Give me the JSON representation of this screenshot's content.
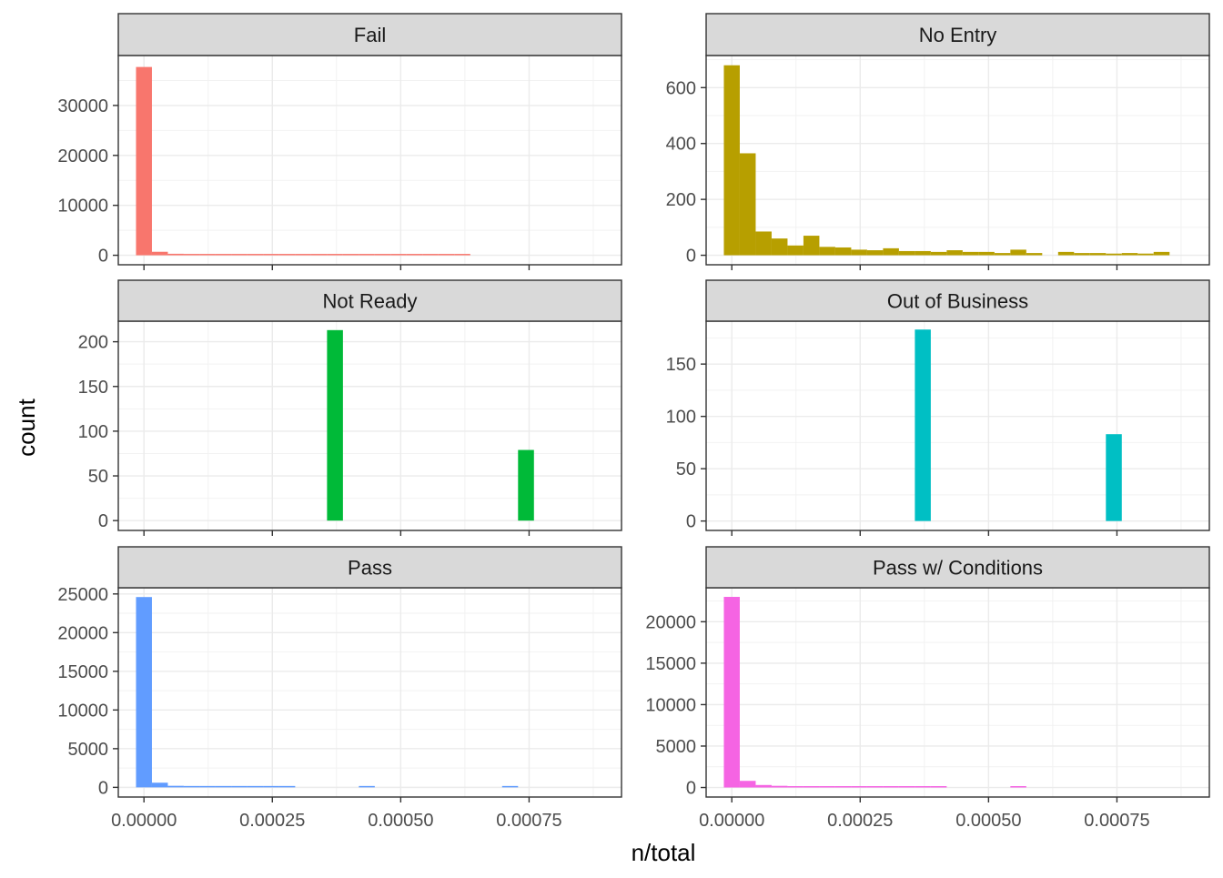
{
  "chart_data": {
    "type": "bar",
    "subtype": "faceted-histogram",
    "xlabel": "n/total",
    "ylabel": "count",
    "grid": true,
    "x_ticks": [
      "0.00000",
      "0.00025",
      "0.00050",
      "0.00075"
    ],
    "x_tick_values": [
      0,
      0.00025,
      0.0005,
      0.00075
    ],
    "xlim": [
      -5e-05,
      0.00093
    ],
    "bin_width": 3.1e-05,
    "bin_start": -1.55e-05,
    "facets": [
      {
        "name": "Fail",
        "color": "#F8766D",
        "ylim": [
          -1900,
          40000
        ],
        "y_ticks": [
          0,
          10000,
          20000,
          30000
        ],
        "y_tick_labels": [
          "0",
          "10000",
          "20000",
          "30000"
        ],
        "values": [
          37700,
          700,
          300,
          150,
          120,
          100,
          90,
          80,
          70,
          60,
          50,
          40,
          40,
          40,
          30,
          30,
          30,
          30,
          30,
          30,
          30,
          0,
          0,
          0,
          0,
          0,
          0,
          0,
          0,
          0
        ]
      },
      {
        "name": "No Entry",
        "color": "#B79F00",
        "ylim": [
          -34,
          715
        ],
        "y_ticks": [
          0,
          200,
          400,
          600
        ],
        "y_tick_labels": [
          "0",
          "200",
          "400",
          "600"
        ],
        "values": [
          680,
          365,
          85,
          60,
          35,
          70,
          30,
          28,
          20,
          18,
          25,
          15,
          15,
          12,
          18,
          12,
          12,
          8,
          20,
          8,
          0,
          12,
          8,
          8,
          6,
          8,
          6,
          12
        ]
      },
      {
        "name": "Not Ready",
        "color": "#00BA38",
        "ylim": [
          -11,
          223
        ],
        "y_ticks": [
          0,
          50,
          100,
          150,
          200
        ],
        "y_tick_labels": [
          "0",
          "50",
          "100",
          "150",
          "200"
        ],
        "values": [
          0,
          0,
          0,
          0,
          0,
          0,
          0,
          0,
          0,
          0,
          0,
          0,
          213,
          0,
          0,
          0,
          0,
          0,
          0,
          0,
          0,
          0,
          0,
          0,
          79,
          0,
          0,
          0,
          0,
          0
        ]
      },
      {
        "name": "Out of Business",
        "color": "#00BFC4",
        "ylim": [
          -9,
          191
        ],
        "y_ticks": [
          0,
          50,
          100,
          150
        ],
        "y_tick_labels": [
          "0",
          "50",
          "100",
          "150"
        ],
        "values": [
          0,
          0,
          0,
          0,
          0,
          0,
          0,
          0,
          0,
          0,
          0,
          0,
          183,
          0,
          0,
          0,
          0,
          0,
          0,
          0,
          0,
          0,
          0,
          0,
          83,
          0,
          0,
          0,
          0,
          0
        ]
      },
      {
        "name": "Pass",
        "color": "#619CFF",
        "ylim": [
          -1250,
          25800
        ],
        "y_ticks": [
          0,
          5000,
          10000,
          15000,
          20000,
          25000
        ],
        "y_tick_labels": [
          "0",
          "5000",
          "10000",
          "15000",
          "20000",
          "25000"
        ],
        "values": [
          24600,
          600,
          200,
          150,
          100,
          80,
          70,
          60,
          50,
          40,
          0,
          0,
          0,
          0,
          80,
          0,
          0,
          0,
          0,
          0,
          0,
          0,
          0,
          80,
          0,
          0,
          0,
          0,
          0,
          0
        ]
      },
      {
        "name": "Pass w/ Conditions",
        "color": "#F564E3",
        "ylim": [
          -1150,
          24100
        ],
        "y_ticks": [
          0,
          5000,
          10000,
          15000,
          20000
        ],
        "y_tick_labels": [
          "0",
          "5000",
          "10000",
          "15000",
          "20000"
        ],
        "values": [
          23000,
          800,
          300,
          200,
          120,
          100,
          80,
          70,
          60,
          50,
          40,
          40,
          30,
          30,
          0,
          0,
          0,
          0,
          60,
          0,
          0,
          0,
          0,
          0,
          0,
          0,
          0,
          0,
          0,
          0
        ]
      }
    ]
  }
}
